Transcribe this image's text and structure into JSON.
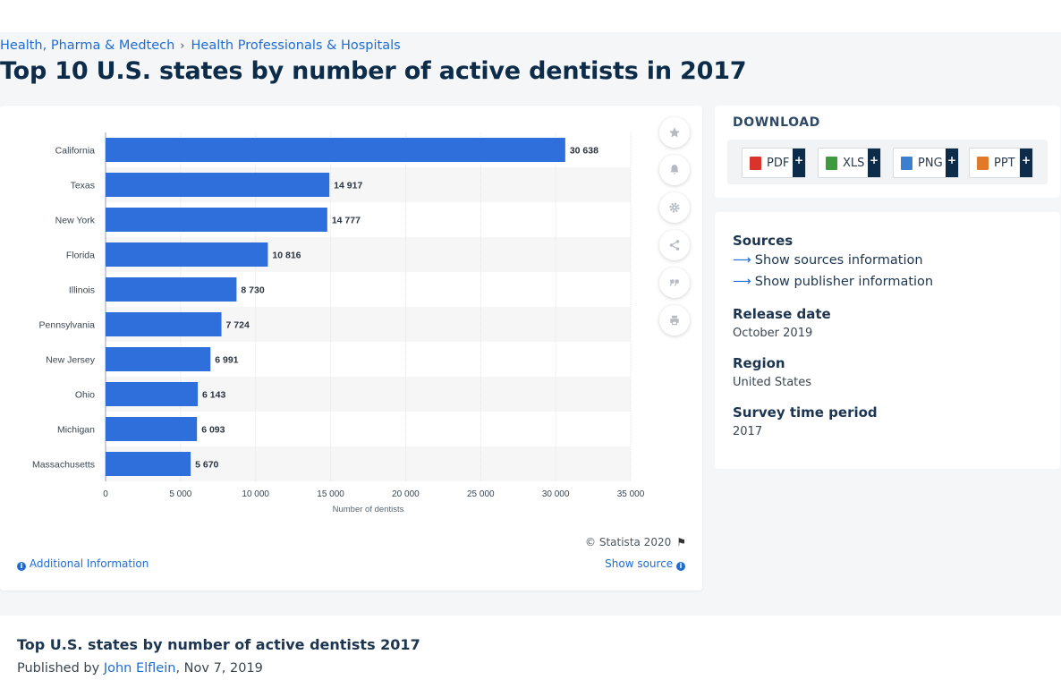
{
  "breadcrumb": {
    "item1": "Health, Pharma & Medtech",
    "separator": "›",
    "item2": "Health Professionals & Hospitals"
  },
  "page_title": "Top 10 U.S. states by number of active dentists in 2017",
  "chart_data": {
    "type": "bar",
    "orientation": "horizontal",
    "categories": [
      "California",
      "Texas",
      "New York",
      "Florida",
      "Illinois",
      "Pennsylvania",
      "New Jersey",
      "Ohio",
      "Michigan",
      "Massachusetts"
    ],
    "values": [
      30638,
      14917,
      14777,
      10816,
      8730,
      7724,
      6991,
      6143,
      6093,
      5670
    ],
    "value_labels": [
      "30 638",
      "14 917",
      "14 777",
      "10 816",
      "8 730",
      "7 724",
      "6 991",
      "6 143",
      "6 093",
      "5 670"
    ],
    "xlim": [
      0,
      35000
    ],
    "xticks": [
      0,
      5000,
      10000,
      15000,
      20000,
      25000,
      30000,
      35000
    ],
    "xtick_labels": [
      "0",
      "5 000",
      "10 000",
      "15 000",
      "20 000",
      "25 000",
      "30 000",
      "35 000"
    ],
    "xlabel": "Number of dentists",
    "grid": "vertical",
    "bar_color": "#2f6fdb"
  },
  "chart_footer": {
    "copyright": "© Statista 2020",
    "additional_info": "Additional Information",
    "show_source": "Show source"
  },
  "tools": [
    "star-icon",
    "bell-icon",
    "gear-icon",
    "share-icon",
    "quote-icon",
    "print-icon"
  ],
  "download": {
    "title": "DOWNLOAD",
    "buttons": [
      {
        "label": "PDF",
        "icon_color": "#d9342b"
      },
      {
        "label": "XLS",
        "icon_color": "#3d9a3d"
      },
      {
        "label": "PNG",
        "icon_color": "#3a7fd0"
      },
      {
        "label": "PPT",
        "icon_color": "#e07a2a"
      }
    ],
    "plus": "+"
  },
  "meta": {
    "sources_heading": "Sources",
    "show_sources": "Show sources information",
    "show_publisher": "Show publisher information",
    "release_heading": "Release date",
    "release_value": "October 2019",
    "region_heading": "Region",
    "region_value": "United States",
    "survey_heading": "Survey time period",
    "survey_value": "2017"
  },
  "bottom": {
    "title": "Top U.S. states by number of active dentists 2017",
    "published_by": "Published by",
    "author": "John Elflein",
    "date": ", Nov 7, 2019"
  }
}
